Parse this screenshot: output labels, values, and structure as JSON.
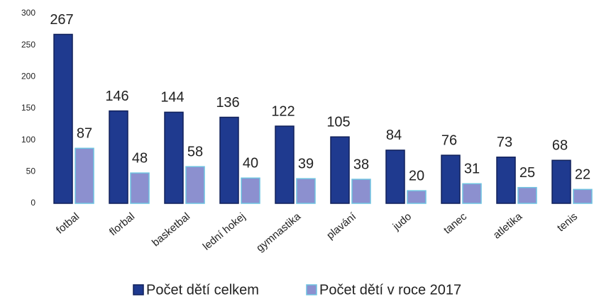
{
  "chart_data": {
    "type": "bar",
    "categories": [
      "fotbal",
      "florbal",
      "basketbal",
      "lední hokej",
      "gymnastika",
      "plavání",
      "judo",
      "tanec",
      "atletika",
      "tenis"
    ],
    "series": [
      {
        "name": "Počet dětí celkem",
        "color": "#1f3a8f",
        "values": [
          267,
          146,
          144,
          136,
          122,
          105,
          84,
          76,
          73,
          68
        ]
      },
      {
        "name": "Počet dětí v roce 2017",
        "color": "#8c90cf",
        "values": [
          87,
          48,
          58,
          40,
          39,
          38,
          20,
          31,
          25,
          22
        ]
      }
    ],
    "ylim": [
      0,
      300
    ],
    "yticks": [
      0,
      50,
      100,
      150,
      200,
      250,
      300
    ],
    "grid": false,
    "legend": "bottom"
  }
}
